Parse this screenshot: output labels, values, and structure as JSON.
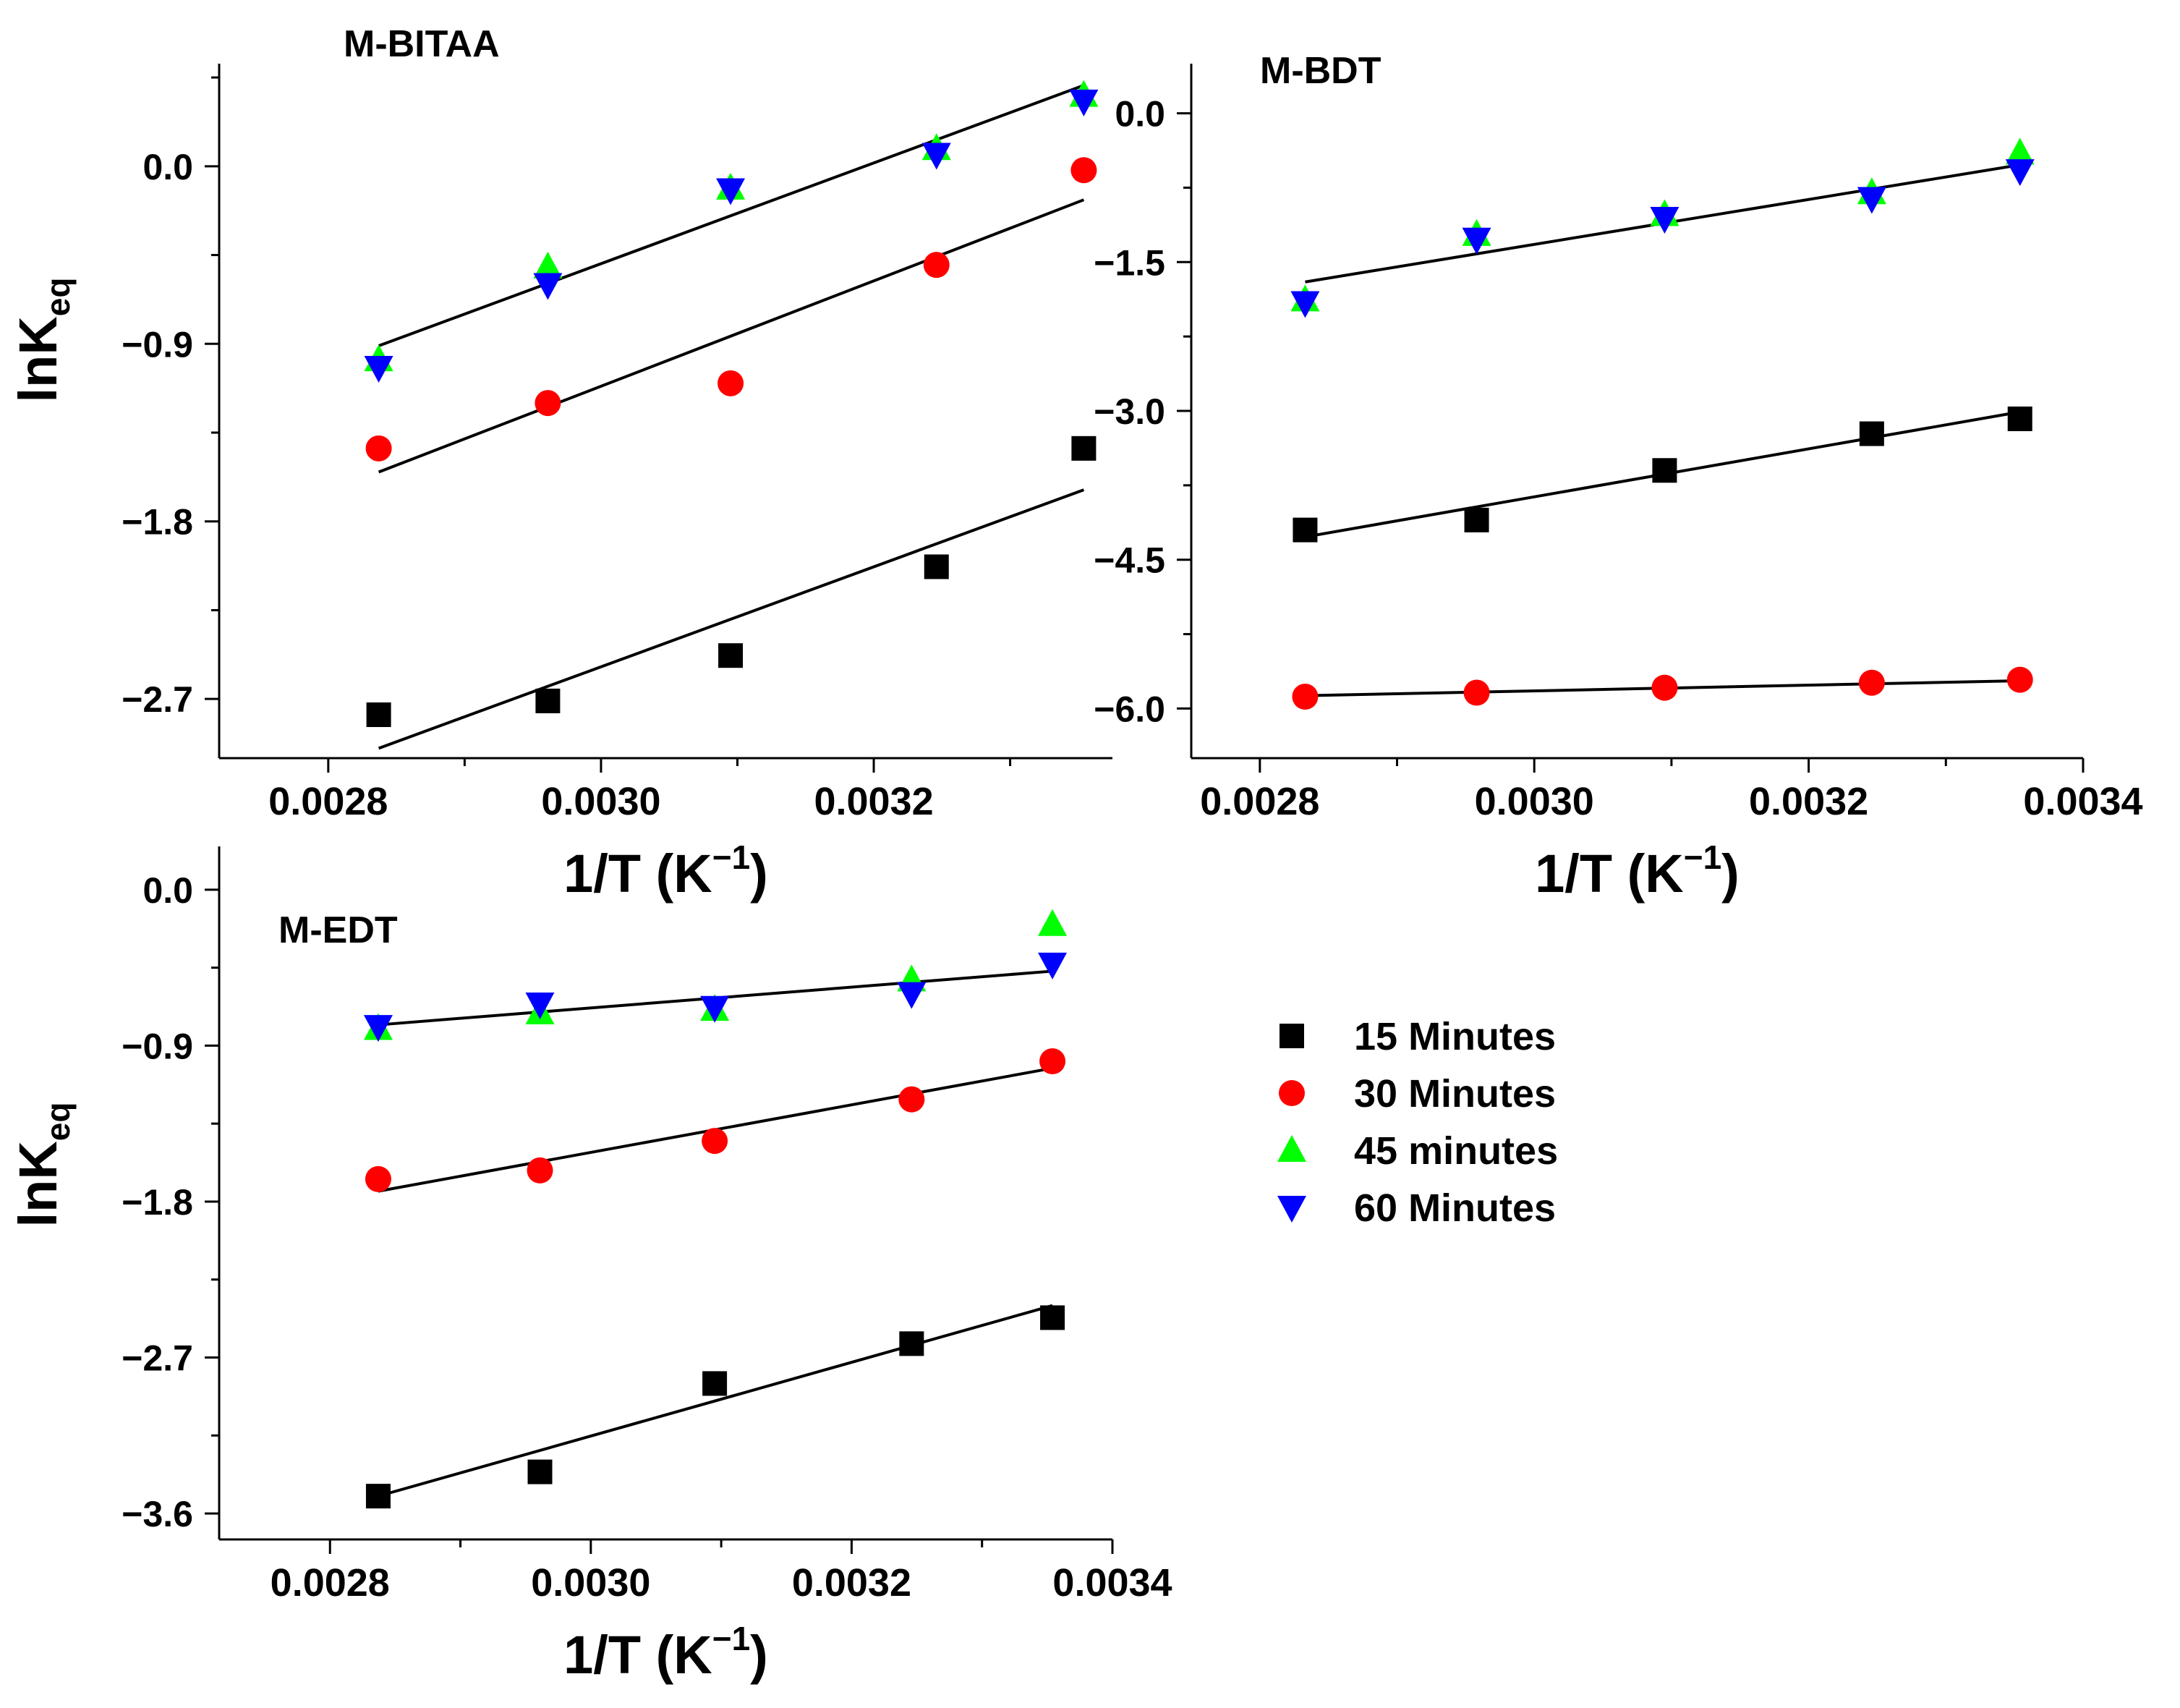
{
  "chart_data": [
    {
      "type": "scatter",
      "title": "M-BITAA",
      "xlabel": "1/T (K",
      "xlabel_sup": "−1",
      "xlabel_close": ")",
      "ylabel": "lnK",
      "ylabel_sub": "eq",
      "xlim": [
        0.00272,
        0.003375
      ],
      "ylim": [
        -3.0,
        0.52
      ],
      "xticks": [
        0.0028,
        0.003,
        0.0032
      ],
      "xtick_labels": [
        "0.0028",
        "0.0030",
        "0.0032"
      ],
      "yticks": [
        -2.7,
        -1.8,
        -0.9,
        0.0
      ],
      "ytick_labels": [
        "−2.7",
        "−1.8",
        "−0.9",
        "0.0"
      ],
      "x": [
        0.002837,
        0.002961,
        0.003095,
        0.003246,
        0.003354
      ],
      "series": [
        {
          "name": "15 Minutes",
          "marker": "square",
          "color": "#000000",
          "values": [
            -2.78,
            -2.71,
            -2.48,
            -2.03,
            -1.43
          ],
          "fit": [
            [
              0.002837,
              -2.95
            ],
            [
              0.003354,
              -1.64
            ]
          ]
        },
        {
          "name": "30 Minutes",
          "marker": "circle",
          "color": "#ff0000",
          "values": [
            -1.43,
            -1.2,
            -1.1,
            -0.5,
            -0.02
          ],
          "fit": [
            [
              0.002837,
              -1.55
            ],
            [
              0.003354,
              -0.17
            ]
          ]
        },
        {
          "name": "45 minutes",
          "marker": "triangle-up",
          "color": "#00ff00",
          "values": [
            -0.98,
            -0.51,
            -0.11,
            0.09,
            0.36
          ],
          "fit": [
            [
              0.002837,
              -0.91
            ],
            [
              0.003354,
              0.41
            ]
          ]
        },
        {
          "name": "60 Minutes",
          "marker": "triangle-down",
          "color": "#0000ff",
          "values": [
            -1.02,
            -0.6,
            -0.12,
            0.06,
            0.33
          ],
          "fit": null
        }
      ]
    },
    {
      "type": "scatter",
      "title": "M-BDT",
      "xlabel": "1/T (K",
      "xlabel_sup": "−1",
      "xlabel_close": ")",
      "ylabel": "",
      "xlim": [
        0.00275,
        0.0034
      ],
      "ylim": [
        -6.5,
        0.5
      ],
      "xticks": [
        0.0028,
        0.003,
        0.0032,
        0.0034
      ],
      "xtick_labels": [
        "0.0028",
        "0.0030",
        "0.0032",
        "0.0034"
      ],
      "yticks": [
        -6.0,
        -4.5,
        -3.0,
        -1.5,
        0.0
      ],
      "ytick_labels": [
        "−6.0",
        "−4.5",
        "−3.0",
        "−1.5",
        "0.0"
      ],
      "x": [
        0.002833,
        0.002958,
        0.003095,
        0.003246,
        0.003354
      ],
      "series": [
        {
          "name": "15 Minutes",
          "marker": "square",
          "color": "#000000",
          "values": [
            -4.2,
            -4.1,
            -3.6,
            -3.23,
            -3.08
          ],
          "fit": [
            [
              0.002833,
              -4.27
            ],
            [
              0.003354,
              -3.01
            ]
          ]
        },
        {
          "name": "30 Minutes",
          "marker": "circle",
          "color": "#ff0000",
          "values": [
            -5.88,
            -5.84,
            -5.79,
            -5.74,
            -5.71
          ],
          "fit": [
            [
              0.002833,
              -5.87
            ],
            [
              0.003354,
              -5.72
            ]
          ]
        },
        {
          "name": "45 minutes",
          "marker": "triangle-up",
          "color": "#00ff00",
          "values": [
            -1.88,
            -1.22,
            -1.02,
            -0.8,
            -0.4
          ],
          "fit": [
            [
              0.002833,
              -1.7
            ],
            [
              0.003354,
              -0.52
            ]
          ]
        },
        {
          "name": "60 Minutes",
          "marker": "triangle-down",
          "color": "#0000ff",
          "values": [
            -1.91,
            -1.27,
            -1.06,
            -0.86,
            -0.58
          ],
          "fit": null
        }
      ]
    },
    {
      "type": "scatter",
      "title": "M-EDT",
      "xlabel": "1/T (K",
      "xlabel_sup": "−1",
      "xlabel_close": ")",
      "ylabel": "lnK",
      "ylabel_sub": "eq",
      "xlim": [
        0.002715,
        0.0034
      ],
      "ylim": [
        -3.75,
        0.25
      ],
      "xticks": [
        0.0028,
        0.003,
        0.0032,
        0.0034
      ],
      "xtick_labels": [
        "0.0028",
        "0.0030",
        "0.0032",
        "0.0034"
      ],
      "yticks": [
        -3.6,
        -2.7,
        -1.8,
        -0.9,
        0.0
      ],
      "ytick_labels": [
        "−3.6",
        "−2.7",
        "−1.8",
        "−0.9",
        "0.0"
      ],
      "x": [
        0.002837,
        0.002961,
        0.003095,
        0.003246,
        0.003354
      ],
      "series": [
        {
          "name": "15 Minutes",
          "marker": "square",
          "color": "#000000",
          "values": [
            -3.5,
            -3.36,
            -2.85,
            -2.62,
            -2.47
          ],
          "fit": [
            [
              0.002837,
              -3.5
            ],
            [
              0.003354,
              -2.4
            ]
          ]
        },
        {
          "name": "30 Minutes",
          "marker": "circle",
          "color": "#ff0000",
          "values": [
            -1.67,
            -1.62,
            -1.45,
            -1.21,
            -0.99
          ],
          "fit": [
            [
              0.002837,
              -1.74
            ],
            [
              0.003354,
              -1.03
            ]
          ]
        },
        {
          "name": "45 minutes",
          "marker": "triangle-up",
          "color": "#00ff00",
          "values": [
            -0.8,
            -0.71,
            -0.69,
            -0.52,
            -0.2
          ],
          "fit": [
            [
              0.002837,
              -0.78
            ],
            [
              0.003354,
              -0.47
            ]
          ]
        },
        {
          "name": "60 Minutes",
          "marker": "triangle-down",
          "color": "#0000ff",
          "values": [
            -0.79,
            -0.66,
            -0.68,
            -0.6,
            -0.43
          ],
          "fit": null
        }
      ]
    }
  ],
  "legend": {
    "placement": "right of bottom panel",
    "items": [
      {
        "label": "15 Minutes",
        "marker": "square",
        "color": "#000000"
      },
      {
        "label": "30 Minutes",
        "marker": "circle",
        "color": "#ff0000"
      },
      {
        "label": "45 minutes",
        "marker": "triangle-up",
        "color": "#00ff00"
      },
      {
        "label": "60 Minutes",
        "marker": "triangle-down",
        "color": "#0000ff"
      }
    ]
  }
}
